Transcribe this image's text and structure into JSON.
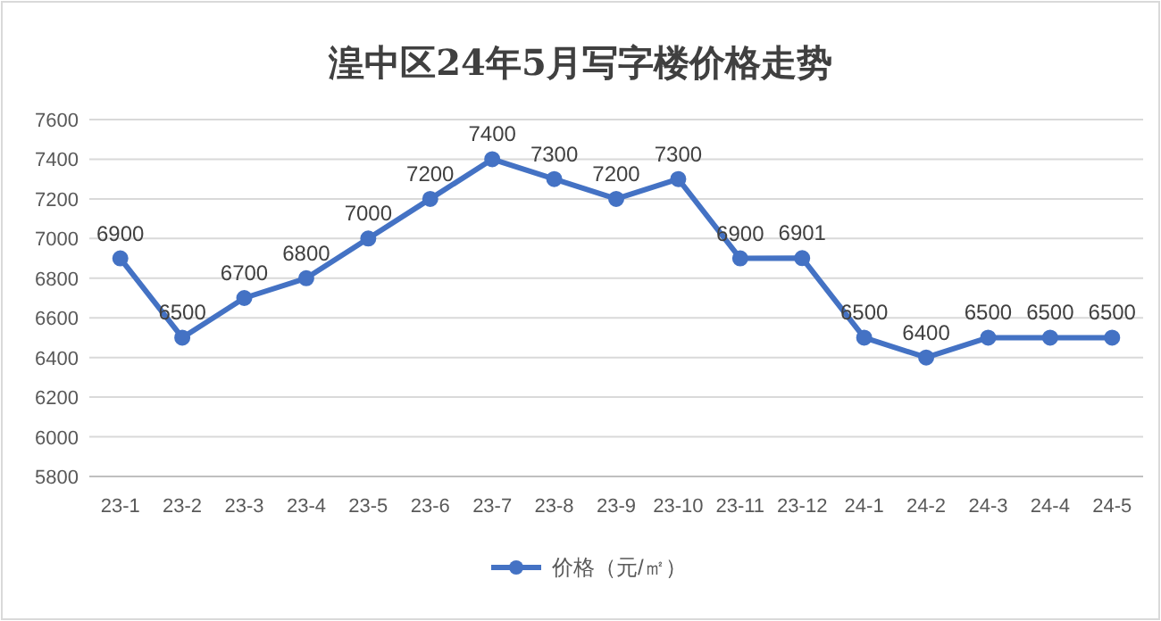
{
  "chart_data": {
    "type": "line",
    "title": "湟中区24年5月写字楼价格走势",
    "categories": [
      "23-1",
      "23-2",
      "23-3",
      "23-4",
      "23-5",
      "23-6",
      "23-7",
      "23-8",
      "23-9",
      "23-10",
      "23-11",
      "23-12",
      "24-1",
      "24-2",
      "24-3",
      "24-4",
      "24-5"
    ],
    "series": [
      {
        "name": "价格（元/㎡）",
        "color": "#4472c4",
        "values": [
          6900,
          6500,
          6700,
          6800,
          7000,
          7200,
          7400,
          7300,
          7200,
          7300,
          6900,
          6901,
          6500,
          6400,
          6500,
          6500,
          6500
        ]
      }
    ],
    "ylim": [
      5800,
      7600
    ],
    "yticks": [
      5800,
      6000,
      6200,
      6400,
      6600,
      6800,
      7000,
      7200,
      7400,
      7600
    ],
    "grid": "y",
    "legend": "bottom",
    "marker": "circle",
    "data_labels": true
  }
}
